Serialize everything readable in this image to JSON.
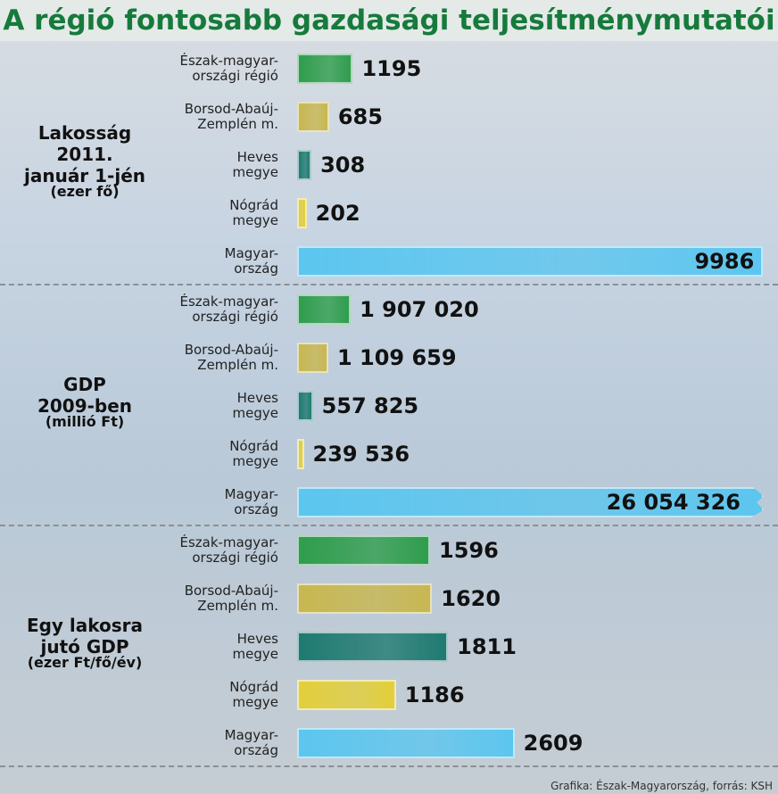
{
  "title": "A régió fontosabb gazdasági teljesítménymutatói",
  "source": "Grafika: Észak-Magyarország, forrás: KSH",
  "chart_data": [
    {
      "type": "bar",
      "title": "Lakosság\n2011.\njanuár 1-jén",
      "unit": "(ezer fő)",
      "categories": [
        "Észak-magyar-\nországi régió",
        "Borsod-Abaúj-\nZemplén m.",
        "Heves\nmegye",
        "Nógrád\nmegye",
        "Magyar-\nország"
      ],
      "values": [
        1195,
        685,
        308,
        202,
        9986
      ],
      "colors": [
        "#2f9d4c",
        "#c8b750",
        "#1f7a70",
        "#e3cf3a",
        "#5cc6ef"
      ],
      "xlim": [
        0,
        10000
      ]
    },
    {
      "type": "bar",
      "title": "GDP\n2009-ben",
      "unit": "(millió Ft)",
      "categories": [
        "Észak-magyar-\nországi régió",
        "Borsod-Abaúj-\nZemplén m.",
        "Heves\nmegye",
        "Nógrád\nmegye",
        "Magyar-\nország"
      ],
      "values": [
        1907020,
        1109659,
        557825,
        239536,
        26054326
      ],
      "value_labels": [
        "1 907 020",
        "1 109 659",
        "557 825",
        "239 536",
        "26 054 326"
      ],
      "colors": [
        "#2f9d4c",
        "#c8b750",
        "#1f7a70",
        "#e3cf3a",
        "#5cc6ef"
      ],
      "xlim": [
        0,
        16600000
      ]
    },
    {
      "type": "bar",
      "title": "Egy lakosra\njutó GDP",
      "unit": "(ezer Ft/fő/év)",
      "categories": [
        "Észak-magyar-\nországi régió",
        "Borsod-Abaúj-\nZemplén m.",
        "Heves\nmegye",
        "Nógrád\nmegye",
        "Magyar-\nország"
      ],
      "values": [
        1596,
        1620,
        1811,
        1186,
        2609
      ],
      "colors": [
        "#2f9d4c",
        "#c8b750",
        "#1f7a70",
        "#e3cf3a",
        "#5cc6ef"
      ],
      "xlim": [
        0,
        5600
      ]
    }
  ]
}
